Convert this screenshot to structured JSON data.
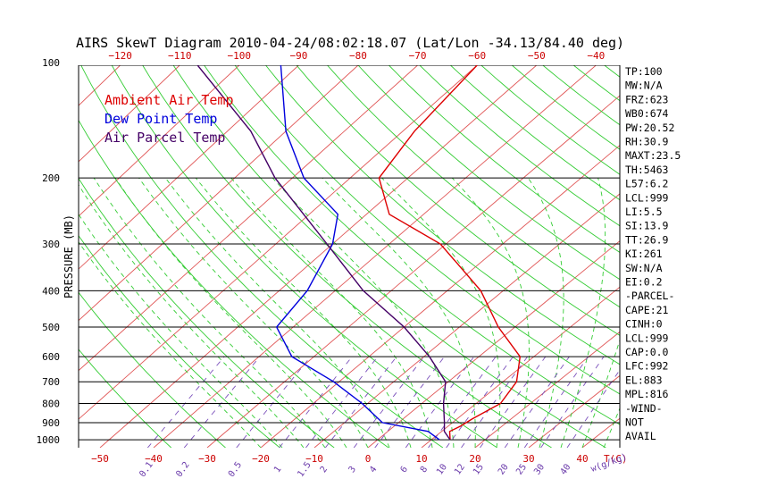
{
  "chart_data": {
    "type": "line",
    "title": "AIRS SkewT Diagram 2010-04-24/08:02:18.07 (Lat/Lon -34.13/84.40 deg)",
    "ylabel": "PRESSURE (MB)",
    "xlabel_unit": "T(C)",
    "mixing_ratio_unit": "w(g/kg)",
    "y_scale": "log",
    "ylim": [
      1050,
      100
    ],
    "bottom_temp_range": [
      -54,
      47
    ],
    "top_temp_range": [
      -127,
      -36
    ],
    "grid": true,
    "legend_position": "top-left",
    "pressure_ticks": [
      100,
      200,
      300,
      400,
      500,
      600,
      700,
      800,
      900,
      1000
    ],
    "bottom_temp_ticks": [
      -50,
      -40,
      -30,
      -20,
      -10,
      0,
      10,
      20,
      30,
      40
    ],
    "top_temp_ticks": [
      -120,
      -110,
      -100,
      -90,
      -80,
      -70,
      -60,
      -50,
      -40
    ],
    "mixing_ratio_labels": [
      "0.1",
      "0.2",
      "0.5",
      "1",
      "1.5",
      "2",
      "3",
      "4",
      "6",
      "8",
      "10",
      "12",
      "15",
      "20",
      "25",
      "30",
      "40"
    ],
    "series": [
      {
        "name": "Ambient Air Temp",
        "color": "#dd0000",
        "points": [
          [
            1000,
            13.5
          ],
          [
            950,
            11.5
          ],
          [
            920,
            12.3
          ],
          [
            880,
            12.8
          ],
          [
            800,
            14.5
          ],
          [
            700,
            12.5
          ],
          [
            600,
            7.5
          ],
          [
            500,
            -3
          ],
          [
            400,
            -14
          ],
          [
            300,
            -31
          ],
          [
            250,
            -46
          ],
          [
            200,
            -55
          ],
          [
            150,
            -58
          ],
          [
            100,
            -60
          ]
        ]
      },
      {
        "name": "Dew Point Temp",
        "color": "#0000dd",
        "points": [
          [
            1000,
            11.5
          ],
          [
            950,
            7.5
          ],
          [
            900,
            -3
          ],
          [
            800,
            -11
          ],
          [
            700,
            -21
          ],
          [
            600,
            -34
          ],
          [
            500,
            -43
          ],
          [
            400,
            -45
          ],
          [
            300,
            -50
          ],
          [
            250,
            -55
          ],
          [
            200,
            -68
          ],
          [
            150,
            -80
          ],
          [
            100,
            -93
          ]
        ]
      },
      {
        "name": "Air Parcel Temp",
        "color": "#440066",
        "points": [
          [
            1000,
            13.5
          ],
          [
            950,
            10.5
          ],
          [
            900,
            8.5
          ],
          [
            800,
            4
          ],
          [
            700,
            -0.5
          ],
          [
            600,
            -9
          ],
          [
            500,
            -20
          ],
          [
            400,
            -35
          ],
          [
            300,
            -51
          ],
          [
            200,
            -73
          ],
          [
            150,
            -86
          ],
          [
            100,
            -107
          ]
        ]
      }
    ],
    "stability_indices": [
      "TP:100",
      "MW:N/A",
      "FRZ:623",
      "WB0:674",
      "PW:20.52",
      "RH:30.9",
      "MAXT:23.5",
      "TH:5463",
      "L57:6.2",
      "LCL:999",
      "LI:5.5",
      "SI:13.9",
      "TT:26.9",
      "KI:261",
      "SW:N/A",
      "EI:0.2",
      "-PARCEL-",
      "CAPE:21",
      "CINH:0",
      "LCL:999",
      "CAP:0.0",
      "LFC:992",
      "EL:883",
      "MPL:816",
      "-WIND-",
      "NOT",
      "AVAIL"
    ]
  }
}
